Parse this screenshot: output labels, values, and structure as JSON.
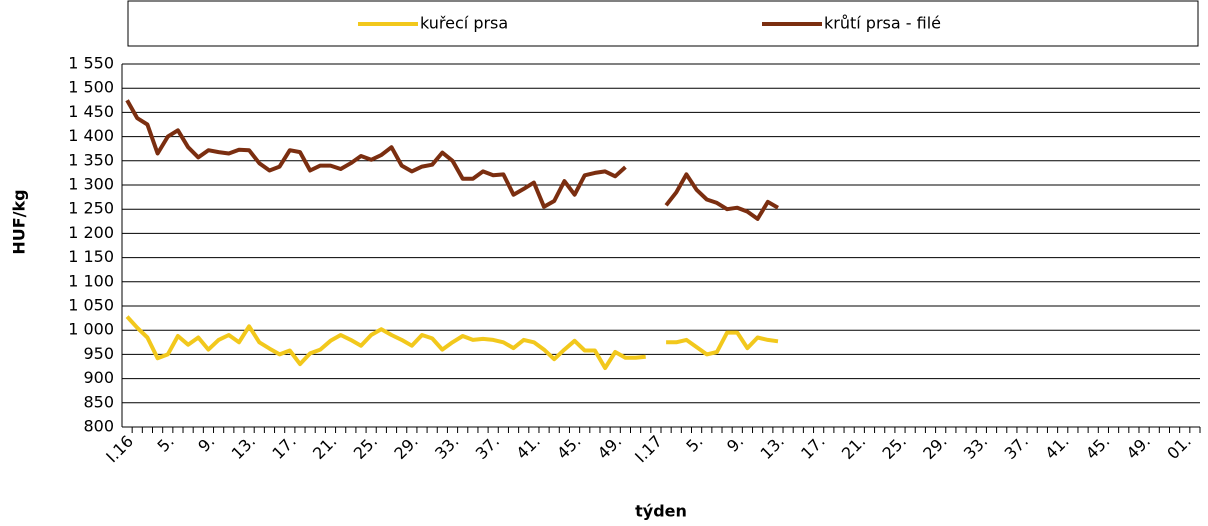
{
  "chart_data": {
    "type": "line",
    "x_label": "týden",
    "y_label": "HUF/kg",
    "categories": [
      "I.16",
      null,
      null,
      null,
      "5.",
      null,
      null,
      null,
      "9.",
      null,
      null,
      null,
      "13.",
      null,
      null,
      null,
      "17.",
      null,
      null,
      null,
      "21.",
      null,
      null,
      null,
      "25.",
      null,
      null,
      null,
      "29.",
      null,
      null,
      null,
      "33.",
      null,
      null,
      null,
      "37.",
      null,
      null,
      null,
      "41.",
      null,
      null,
      null,
      "45.",
      null,
      null,
      null,
      "49.",
      null,
      null,
      null,
      "I.17",
      null,
      null,
      null,
      "5.",
      null,
      null,
      null,
      "9.",
      null,
      null,
      null,
      "13.",
      null,
      null,
      null,
      "17.",
      null,
      null,
      null,
      "21.",
      null,
      null,
      null,
      "25.",
      null,
      null,
      null,
      "29.",
      null,
      null,
      null,
      "33.",
      null,
      null,
      null,
      "37.",
      null,
      null,
      null,
      "41.",
      null,
      null,
      null,
      "45.",
      null,
      null,
      null,
      "49.",
      null,
      null,
      null,
      "01.",
      null
    ],
    "series": [
      {
        "name": "kuřecí prsa",
        "color": "#f2c81c",
        "values": [
          1028,
          1005,
          985,
          942,
          950,
          988,
          970,
          985,
          960,
          980,
          990,
          975,
          1008,
          975,
          962,
          950,
          958,
          930,
          952,
          960,
          978,
          990,
          980,
          968,
          990,
          1002,
          990,
          980,
          968,
          990,
          983,
          960,
          975,
          988,
          980,
          982,
          980,
          975,
          963,
          980,
          975,
          960,
          940,
          960,
          978,
          958,
          958,
          922,
          955,
          943,
          943,
          945,
          null,
          975,
          975,
          980,
          965,
          950,
          955,
          995,
          995,
          963,
          985,
          980,
          977,
          null,
          null,
          null,
          null,
          null,
          null,
          null,
          null,
          null,
          null,
          null,
          null,
          null,
          null,
          null,
          null,
          null,
          null,
          null,
          null,
          null,
          null,
          null,
          null,
          null,
          null,
          null,
          null,
          null,
          null,
          null,
          null,
          null,
          null,
          null,
          null,
          null,
          null,
          null,
          null,
          null
        ]
      },
      {
        "name": "krůtí prsa - filé",
        "color": "#7b2e10",
        "values": [
          1475,
          1438,
          1425,
          1365,
          1400,
          1413,
          1378,
          1357,
          1372,
          1368,
          1365,
          1373,
          1372,
          1345,
          1330,
          1338,
          1372,
          1368,
          1330,
          1340,
          1340,
          1333,
          1345,
          1360,
          1352,
          1362,
          1378,
          1340,
          1328,
          1338,
          1342,
          1367,
          1350,
          1313,
          1313,
          1328,
          1320,
          1322,
          1280,
          1292,
          1305,
          1255,
          1267,
          1308,
          1280,
          1320,
          1325,
          1328,
          1318,
          1337,
          null,
          null,
          null,
          1258,
          1285,
          1322,
          1290,
          1270,
          1263,
          1250,
          1253,
          1245,
          1230,
          1265,
          1253,
          null,
          null,
          null,
          null,
          null,
          null,
          null,
          null,
          null,
          null,
          null,
          null,
          null,
          null,
          null,
          null,
          null,
          null,
          null,
          null,
          null,
          null,
          null,
          null,
          null,
          null,
          null,
          null,
          null,
          null,
          null,
          null,
          null,
          null,
          null,
          null,
          null,
          null,
          null,
          null,
          null
        ]
      }
    ],
    "ylim": [
      800,
      1550
    ],
    "yticks": [
      800,
      850,
      900,
      950,
      {
        "value": 1000,
        "label": "1 000"
      },
      {
        "value": 1050,
        "label": "1 050"
      },
      {
        "value": 1100,
        "label": "1 100"
      },
      {
        "value": 1150,
        "label": "1 150"
      },
      {
        "value": 1200,
        "label": "1 200"
      },
      {
        "value": 1250,
        "label": "1 250"
      },
      {
        "value": 1300,
        "label": "1 300"
      },
      {
        "value": 1350,
        "label": "1 350"
      },
      {
        "value": 1400,
        "label": "1 400"
      },
      {
        "value": 1450,
        "label": "1 450"
      },
      {
        "value": 1500,
        "label": "1 500"
      },
      {
        "value": 1550,
        "label": "1 550"
      }
    ],
    "grid": true,
    "legend": "top"
  }
}
